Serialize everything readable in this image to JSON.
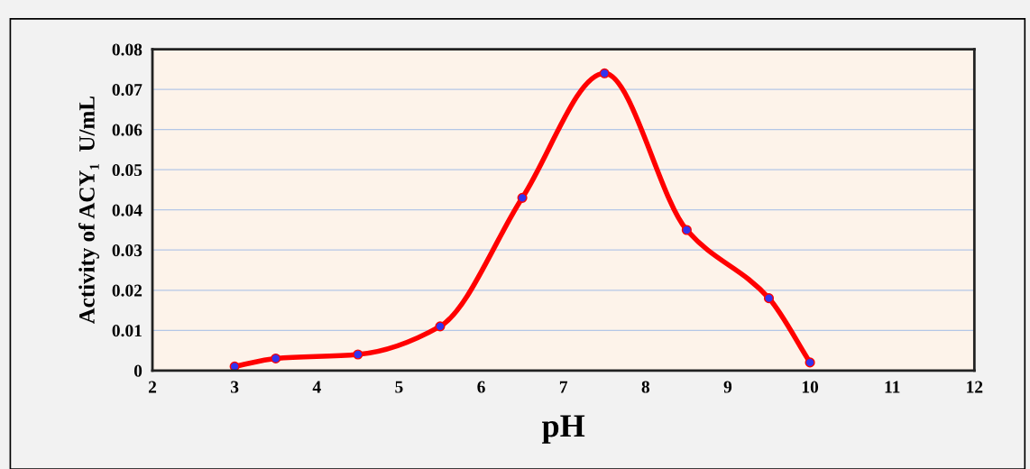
{
  "chart_data": {
    "type": "line",
    "xlabel": "pH",
    "ylabel": "Activity of ACY₁  U/mL",
    "x": [
      3,
      3.5,
      4.5,
      5.5,
      6.5,
      7.5,
      8.5,
      9.5,
      10
    ],
    "series": [
      {
        "color": "#ff0000",
        "values": [
          0.001,
          0.003,
          0.004,
          0.011,
          0.043,
          0.074,
          0.035,
          0.018,
          0.002
        ]
      }
    ],
    "xlim": [
      2,
      12
    ],
    "xticks": [
      2,
      3,
      4,
      5,
      6,
      7,
      8,
      9,
      10,
      11,
      12
    ],
    "ylim": [
      0,
      0.08
    ],
    "yticks": [
      0,
      0.01,
      0.02,
      0.03,
      0.04,
      0.05,
      0.06,
      0.07,
      0.08
    ],
    "grid": "y",
    "marker": "circle",
    "line_style": "solid",
    "legend": false
  }
}
